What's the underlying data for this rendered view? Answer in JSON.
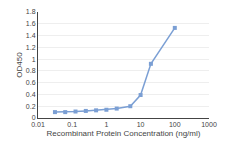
{
  "chart_data": {
    "type": "line",
    "x": [
      0.0313,
      0.0625,
      0.125,
      0.25,
      0.5,
      1,
      2,
      5,
      10,
      20,
      100
    ],
    "values": [
      0.1,
      0.1,
      0.11,
      0.12,
      0.13,
      0.14,
      0.16,
      0.2,
      0.39,
      0.92,
      1.53
    ],
    "color": "#7b9fd4",
    "marker": "square",
    "xlabel": "Recombinant Protein Concentration (ng/ml)",
    "ylabel": "OD450",
    "log": "x",
    "xlim": [
      0.01,
      1000
    ],
    "xticks": [
      0.01,
      0.1,
      1,
      10,
      100,
      1000
    ],
    "ylim": [
      0,
      1.8
    ],
    "yticks": [
      0,
      0.2,
      0.4,
      0.6,
      0.8,
      1,
      1.2,
      1.4,
      1.6,
      1.8
    ],
    "grid": true
  }
}
